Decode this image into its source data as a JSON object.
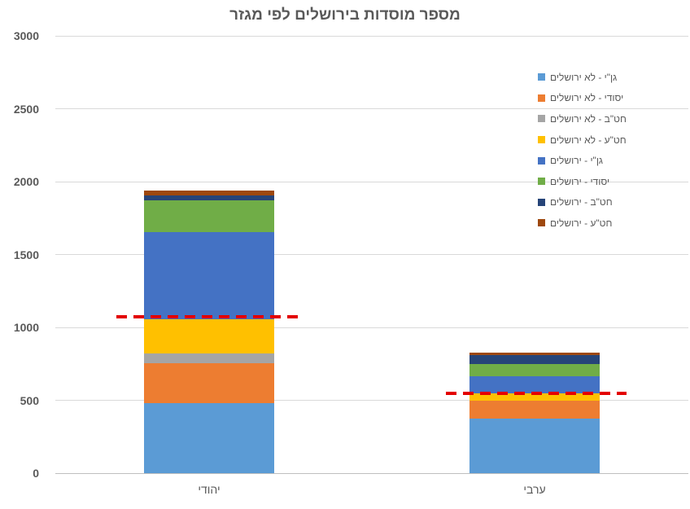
{
  "title": "מספר מוסדות בירושלים לפי מגזר",
  "chart_data": {
    "type": "bar",
    "stacked": true,
    "title": "מספר מוסדות בירושלים לפי מגזר",
    "categories": [
      "יהודי",
      "ערבי"
    ],
    "series": [
      {
        "name": "גן\"י - לא ירושלים",
        "color": "#5B9BD5",
        "values": [
          480,
          375
        ]
      },
      {
        "name": "יסודי - לא ירושלים",
        "color": "#ED7D31",
        "values": [
          275,
          125
        ]
      },
      {
        "name": "חט\"ב - לא ירושלים",
        "color": "#A5A5A5",
        "values": [
          65,
          0
        ]
      },
      {
        "name": "חט\"ע - לא ירושלים",
        "color": "#FFC000",
        "values": [
          235,
          45
        ]
      },
      {
        "name": "גן\"י - ירושלים",
        "color": "#4472C4",
        "values": [
          600,
          120
        ]
      },
      {
        "name": "יסודי - ירושלים",
        "color": "#70AD47",
        "values": [
          215,
          85
        ]
      },
      {
        "name": "חט\"ב - ירושלים",
        "color": "#264478",
        "values": [
          35,
          60
        ]
      },
      {
        "name": "חט\"ע - ירושלים",
        "color": "#9E480E",
        "values": [
          35,
          15
        ]
      }
    ],
    "totals": {
      "יהודי": 1940,
      "ערבי": 825
    },
    "reference_lines": [
      {
        "category": "יהודי",
        "value": 1070,
        "color": "#e30000",
        "style": "dashed"
      },
      {
        "category": "ערבי",
        "value": 550,
        "color": "#e30000",
        "style": "dashed"
      }
    ],
    "ylim": [
      0,
      3000
    ],
    "yticks": [
      0,
      500,
      1000,
      1500,
      2000,
      2500,
      3000
    ],
    "xlabel": "",
    "ylabel": "",
    "grid": true,
    "legend_position": "top-right"
  }
}
